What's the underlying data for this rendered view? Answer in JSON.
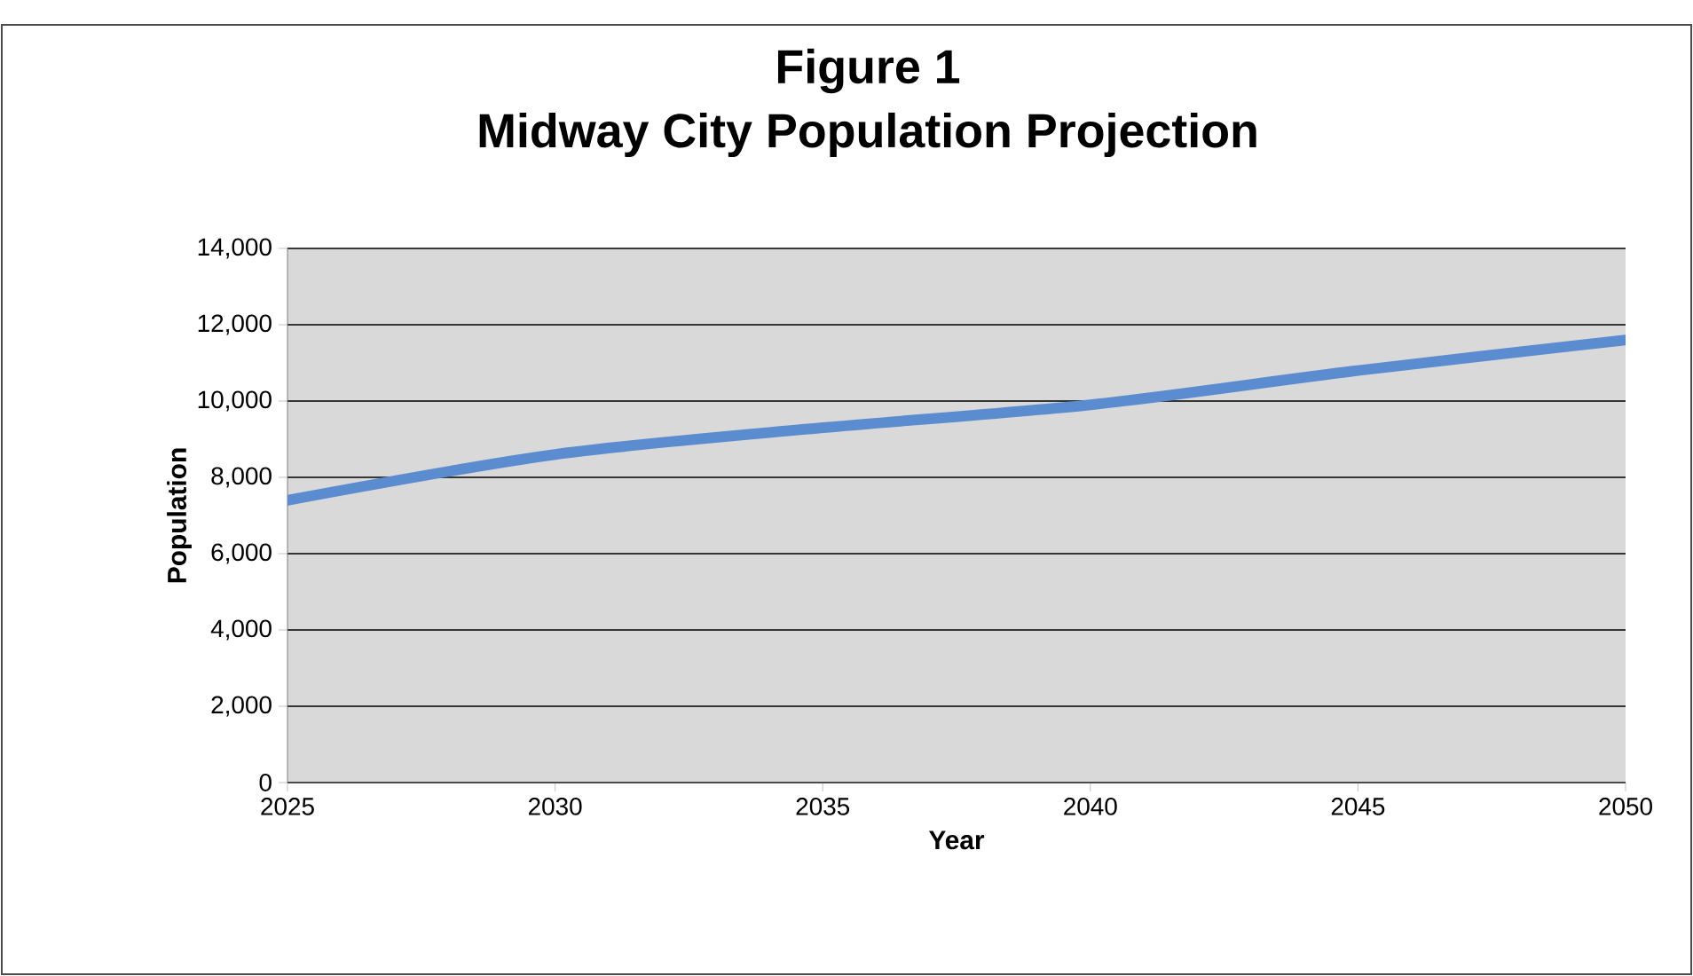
{
  "chart_data": {
    "type": "line",
    "title": "Figure 1",
    "subtitle": "Midway City Population Projection",
    "xlabel": "Year",
    "ylabel": "Population",
    "x": [
      2025,
      2030,
      2035,
      2040,
      2045,
      2050
    ],
    "series": [
      {
        "color": "#5b8ccf",
        "values": [
          7400,
          8600,
          9300,
          9900,
          10800,
          11600
        ]
      }
    ],
    "xlim": [
      2025,
      2050
    ],
    "xticks": [
      2025,
      2030,
      2035,
      2040,
      2045,
      2050
    ],
    "ylim": [
      0,
      14000
    ],
    "yticks": [
      {
        "value": 0,
        "label": "0"
      },
      {
        "value": 2000,
        "label": "2,000"
      },
      {
        "value": 4000,
        "label": "4,000"
      },
      {
        "value": 6000,
        "label": "6,000"
      },
      {
        "value": 8000,
        "label": "8,000"
      },
      {
        "value": 10000,
        "label": "10,000"
      },
      {
        "value": 12000,
        "label": "12,000"
      },
      {
        "value": 14000,
        "label": "14,000"
      }
    ],
    "grid": "y"
  }
}
